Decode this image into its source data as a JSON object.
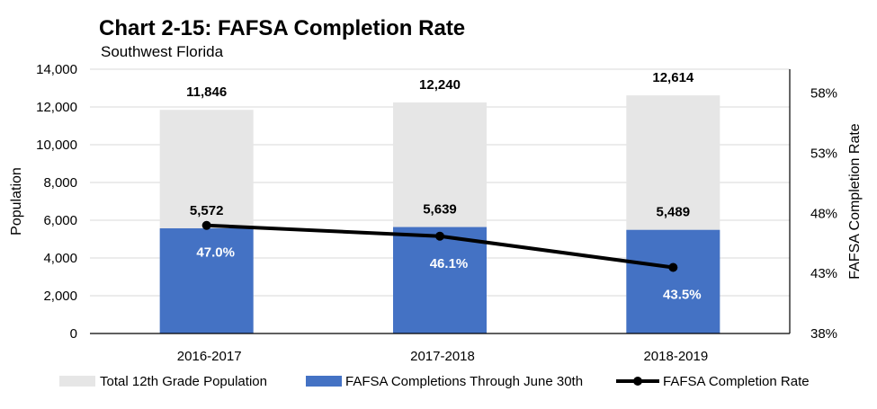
{
  "chart_data": {
    "type": "bar",
    "title": "Chart 2-15:  FAFSA Completion Rate",
    "subtitle": "Southwest Florida",
    "categories": [
      "2016-2017",
      "2017-2018",
      "2018-2019"
    ],
    "series": [
      {
        "name": "Total 12th Grade Population",
        "type": "bar",
        "axis": "left",
        "color": "#e6e6e6",
        "values": [
          11846,
          12240,
          12614
        ],
        "labels": [
          "11,846",
          "12,240",
          "12,614"
        ]
      },
      {
        "name": "FAFSA Completions Through June 30th",
        "type": "bar",
        "axis": "left",
        "color": "#4472c4",
        "values": [
          5572,
          5639,
          5489
        ],
        "labels": [
          "5,572",
          "5,639",
          "5,489"
        ]
      },
      {
        "name": "FAFSA Completion Rate",
        "type": "line",
        "axis": "right",
        "color": "#000000",
        "values": [
          47.0,
          46.1,
          43.5
        ],
        "labels": [
          "47.0%",
          "46.1%",
          "43.5%"
        ]
      }
    ],
    "ylabel": "Population",
    "y2label": "FAFSA Completion Rate",
    "ylim": [
      0,
      14000
    ],
    "y2lim": [
      38,
      60
    ],
    "yticks": [
      "0",
      "2,000",
      "4,000",
      "6,000",
      "8,000",
      "10,000",
      "12,000",
      "14,000"
    ],
    "ytick_values": [
      0,
      2000,
      4000,
      6000,
      8000,
      10000,
      12000,
      14000
    ],
    "y2ticks": [
      "38%",
      "43%",
      "48%",
      "53%",
      "58%"
    ],
    "y2tick_values": [
      38,
      43,
      48,
      53,
      58
    ],
    "grid": true,
    "legend_position": "bottom"
  }
}
